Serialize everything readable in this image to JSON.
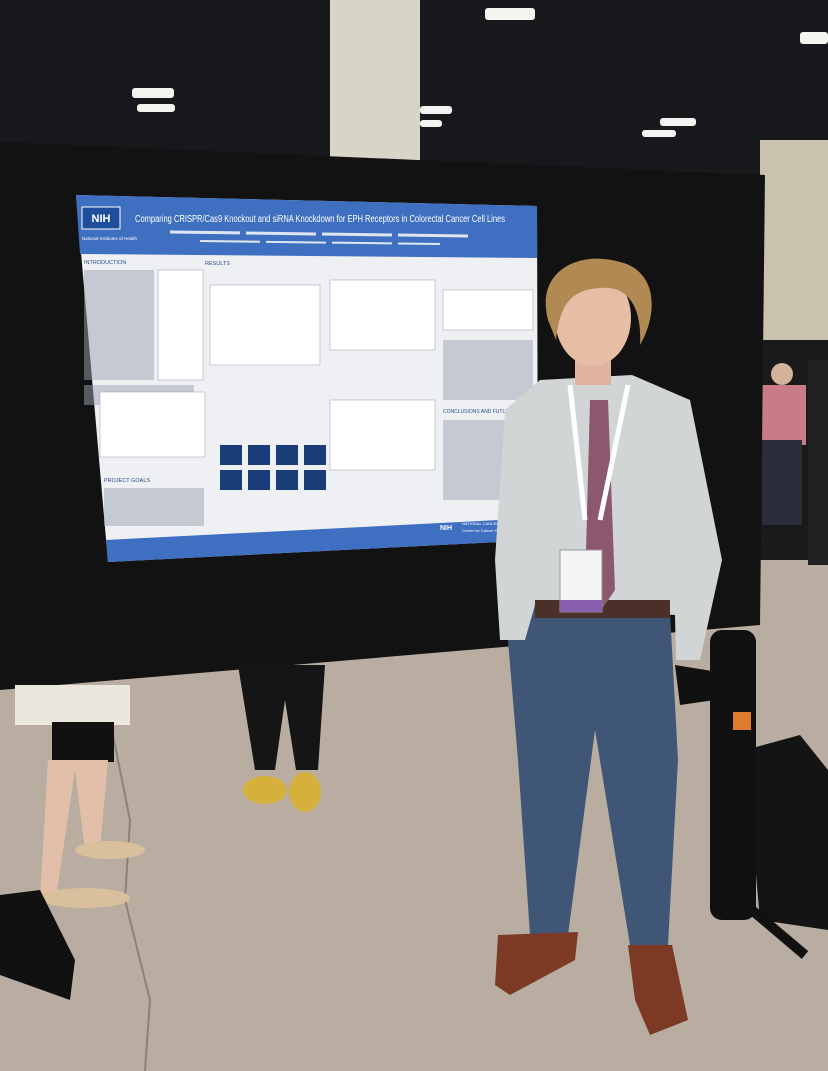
{
  "poster": {
    "logo": "NIH",
    "logo_caption": "National Institutes of Health",
    "title": "Comparing CRISPR/Cas9 Knockout and siRNA Knockdown for EPH Receptors in Colorectal Cancer Cell Lines",
    "sections": [
      "INTRODUCTION",
      "RESULTS",
      "PROJECT GOALS",
      "CONCLUSIONS AND FUTURE DIRECTIONS"
    ],
    "footer_logo": "NIH",
    "footer_text": "NATIONAL CANCER INSTITUTE",
    "footer_subtext": "Center for Cancer Research"
  }
}
